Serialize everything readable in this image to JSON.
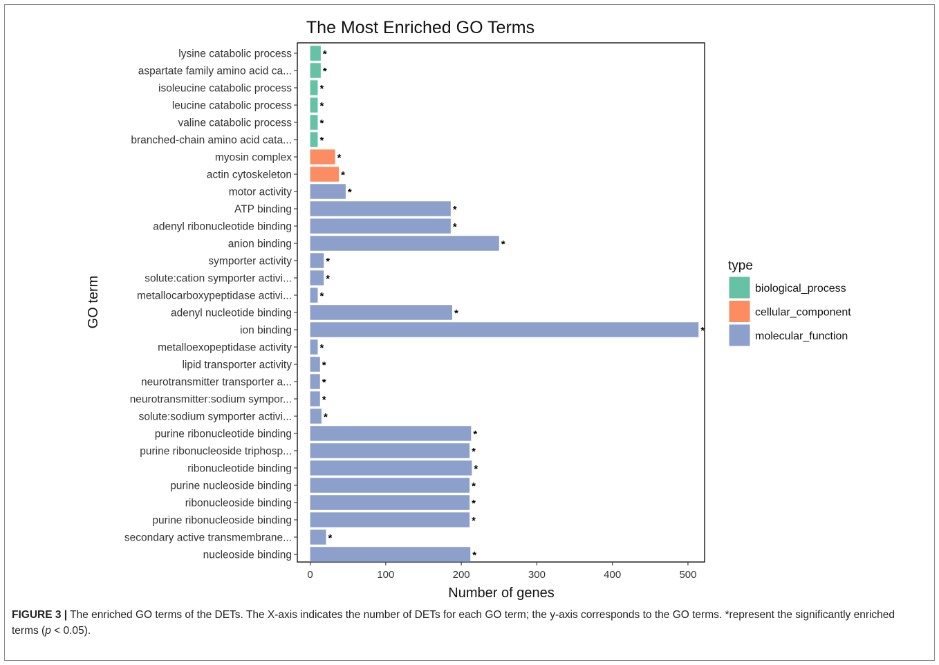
{
  "chart_data": {
    "type": "bar",
    "orientation": "horizontal",
    "title": "The Most Enriched GO Terms",
    "xlabel": "Number of genes",
    "ylabel": "GO term",
    "xlim": [
      -17,
      522
    ],
    "xticks": [
      0,
      100,
      200,
      300,
      400,
      500
    ],
    "grid": false,
    "legend": {
      "title": "type",
      "position": "right",
      "entries": [
        {
          "name": "biological_process",
          "color": "#66c2a5"
        },
        {
          "name": "cellular_component",
          "color": "#fc8d62"
        },
        {
          "name": "molecular_function",
          "color": "#8da0cb"
        }
      ]
    },
    "significance_marker": "*",
    "bars": [
      {
        "term": "lysine catabolic process",
        "value": 14,
        "type": "biological_process",
        "mark": "*"
      },
      {
        "term": "aspartate family amino acid ca...",
        "value": 14,
        "type": "biological_process",
        "mark": "*"
      },
      {
        "term": "isoleucine catabolic process",
        "value": 10,
        "type": "biological_process",
        "mark": "*"
      },
      {
        "term": "leucine catabolic process",
        "value": 10,
        "type": "biological_process",
        "mark": "*"
      },
      {
        "term": "valine catabolic process",
        "value": 10,
        "type": "biological_process",
        "mark": "*"
      },
      {
        "term": "branched-chain amino acid cata...",
        "value": 10,
        "type": "biological_process",
        "mark": "*"
      },
      {
        "term": "myosin complex",
        "value": 33,
        "type": "cellular_component",
        "mark": "*"
      },
      {
        "term": "actin cytoskeleton",
        "value": 38,
        "type": "cellular_component",
        "mark": "*"
      },
      {
        "term": "motor activity",
        "value": 47,
        "type": "molecular_function",
        "mark": "*"
      },
      {
        "term": "ATP binding",
        "value": 186,
        "type": "molecular_function",
        "mark": "*"
      },
      {
        "term": "adenyl ribonucleotide binding",
        "value": 186,
        "type": "molecular_function",
        "mark": "*"
      },
      {
        "term": "anion binding",
        "value": 250,
        "type": "molecular_function",
        "mark": "*"
      },
      {
        "term": "symporter activity",
        "value": 18,
        "type": "molecular_function",
        "mark": "*"
      },
      {
        "term": "solute:cation symporter activi...",
        "value": 18,
        "type": "molecular_function",
        "mark": "*"
      },
      {
        "term": "metallocarboxypeptidase activi...",
        "value": 10,
        "type": "molecular_function",
        "mark": "*"
      },
      {
        "term": "adenyl nucleotide binding",
        "value": 188,
        "type": "molecular_function",
        "mark": "*"
      },
      {
        "term": "ion binding",
        "value": 514,
        "type": "molecular_function",
        "mark": "*"
      },
      {
        "term": "metalloexopeptidase activity",
        "value": 10,
        "type": "molecular_function",
        "mark": "*"
      },
      {
        "term": "lipid transporter activity",
        "value": 13,
        "type": "molecular_function",
        "mark": "*"
      },
      {
        "term": "neurotransmitter transporter a...",
        "value": 13,
        "type": "molecular_function",
        "mark": "*"
      },
      {
        "term": "neurotransmitter:sodium sympor...",
        "value": 13,
        "type": "molecular_function",
        "mark": "*"
      },
      {
        "term": "solute:sodium symporter activi...",
        "value": 15,
        "type": "molecular_function",
        "mark": "*"
      },
      {
        "term": "purine ribonucleotide binding",
        "value": 213,
        "type": "molecular_function",
        "mark": "*"
      },
      {
        "term": "purine ribonucleoside triphosp...",
        "value": 211,
        "type": "molecular_function",
        "mark": "*"
      },
      {
        "term": "ribonucleotide binding",
        "value": 214,
        "type": "molecular_function",
        "mark": "*"
      },
      {
        "term": "purine nucleoside binding",
        "value": 211,
        "type": "molecular_function",
        "mark": "*"
      },
      {
        "term": "ribonucleoside binding",
        "value": 211,
        "type": "molecular_function",
        "mark": "*"
      },
      {
        "term": "purine ribonucleoside binding",
        "value": 211,
        "type": "molecular_function",
        "mark": "*"
      },
      {
        "term": "secondary active transmembrane...",
        "value": 21,
        "type": "molecular_function",
        "mark": "*"
      },
      {
        "term": "nucleoside binding",
        "value": 212,
        "type": "molecular_function",
        "mark": "*"
      }
    ]
  },
  "caption": {
    "label": "FIGURE 3 |",
    "text_before_p": " The enriched GO terms of the DETs. The X-axis indicates the number of DETs for each GO term; the y-axis corresponds to the GO terms. *represent the significantly enriched terms (",
    "p_symbol": "p",
    "text_after_p": " < 0.05)."
  }
}
